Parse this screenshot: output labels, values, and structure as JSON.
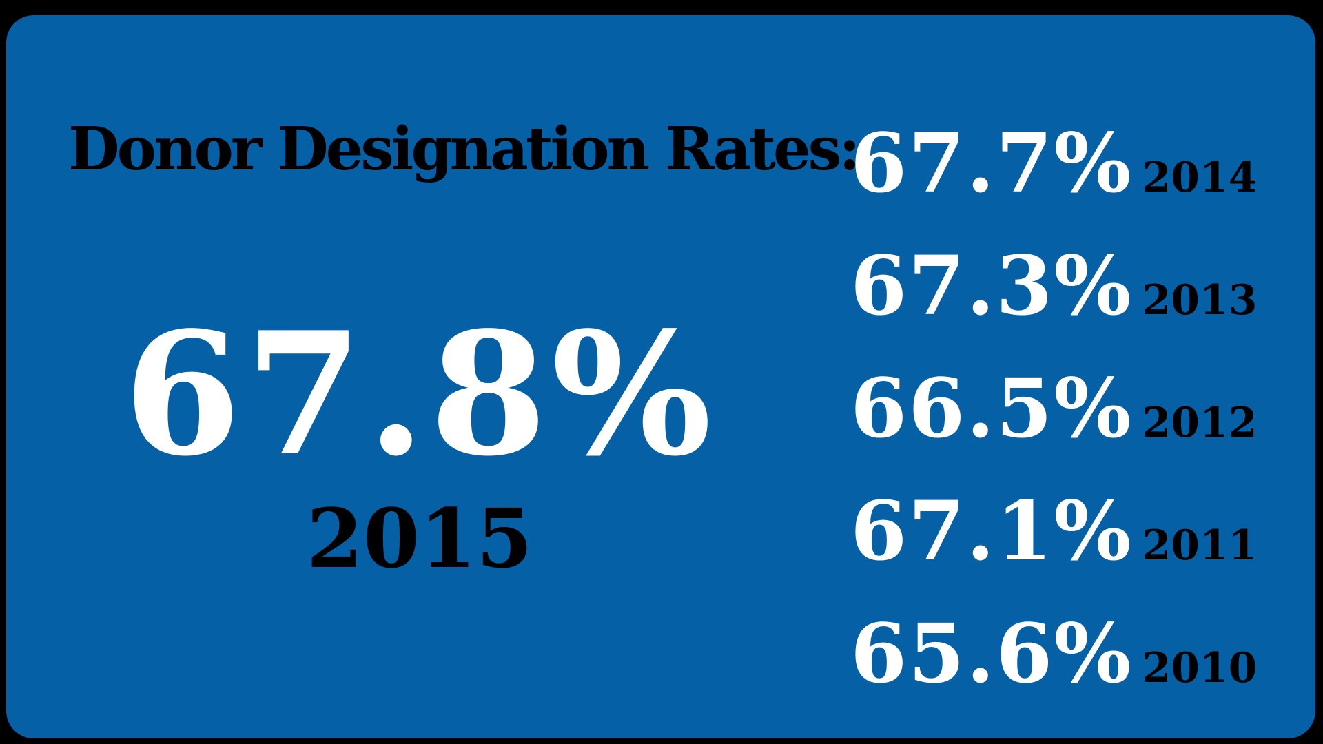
{
  "heading": "Donor Designation Rates:",
  "current": {
    "value": "67.8%",
    "year": "2015"
  },
  "history": [
    {
      "value": "67.7%",
      "year": "2014"
    },
    {
      "value": "67.3%",
      "year": "2013"
    },
    {
      "value": "66.5%",
      "year": "2012"
    },
    {
      "value": "67.1%",
      "year": "2011"
    },
    {
      "value": "65.6%",
      "year": "2010"
    }
  ],
  "colors": {
    "background": "#000000",
    "card": "#0560a6",
    "value_text": "#ffffff",
    "label_text": "#000000"
  }
}
